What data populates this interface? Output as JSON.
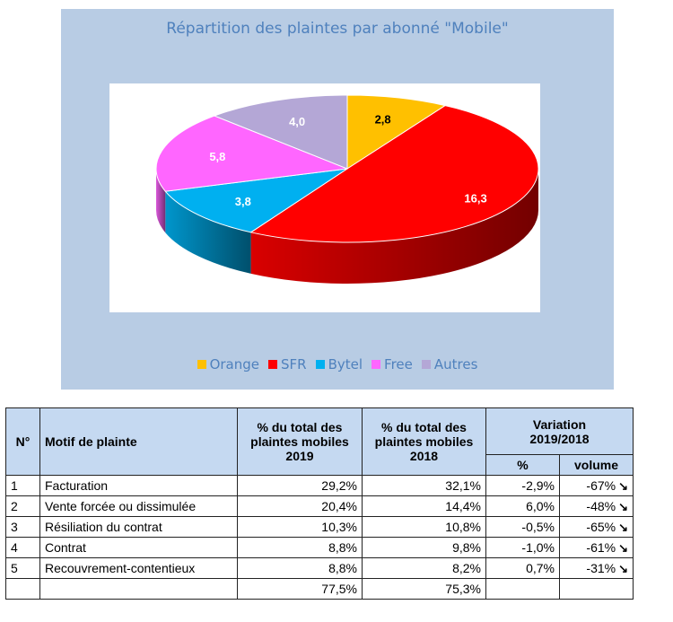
{
  "chart_data": {
    "type": "pie",
    "title": "Répartition des plaintes par abonné \"Mobile\"",
    "slices": [
      {
        "label": "Orange",
        "value": 2.8,
        "value_label": "2,8",
        "color": "#ffc000"
      },
      {
        "label": "SFR",
        "value": 16.3,
        "value_label": "16,3",
        "color": "#ff0000"
      },
      {
        "label": "Bytel",
        "value": 3.8,
        "value_label": "3,8",
        "color": "#00b0f0"
      },
      {
        "label": "Free",
        "value": 5.8,
        "value_label": "5,8",
        "color": "#ff66ff"
      },
      {
        "label": "Autres",
        "value": 4.0,
        "value_label": "4,0",
        "color": "#b4a7d6"
      }
    ],
    "legend_position": "bottom",
    "style": "3d"
  },
  "table": {
    "headers": {
      "num": "N°",
      "motif": "Motif de plainte",
      "pct2019": "% du total des plaintes mobiles 2019",
      "pct2018": "% du total des plaintes mobiles 2018",
      "variation": "Variation 2019/2018",
      "var_pct": "%",
      "var_volume": "volume"
    },
    "rows": [
      {
        "n": "1",
        "motif": "Facturation",
        "pct2019": "29,2%",
        "pct2018": "32,1%",
        "var_pct": "-2,9%",
        "var_volume": "-67%"
      },
      {
        "n": "2",
        "motif": "Vente forcée ou dissimulée",
        "pct2019": "20,4%",
        "pct2018": "14,4%",
        "var_pct": "6,0%",
        "var_volume": "-48%"
      },
      {
        "n": "3",
        "motif": "Résiliation du contrat",
        "pct2019": "10,3%",
        "pct2018": "10,8%",
        "var_pct": "-0,5%",
        "var_volume": "-65%"
      },
      {
        "n": "4",
        "motif": "Contrat",
        "pct2019": "8,8%",
        "pct2018": "9,8%",
        "var_pct": "-1,0%",
        "var_volume": "-61%"
      },
      {
        "n": "5",
        "motif": "Recouvrement-contentieux",
        "pct2019": "8,8%",
        "pct2018": "8,2%",
        "var_pct": "0,7%",
        "var_volume": "-31%"
      }
    ],
    "total": {
      "pct2019": "77,5%",
      "pct2018": "75,3%"
    },
    "arrow_icon": "arrow-down-right-icon"
  }
}
